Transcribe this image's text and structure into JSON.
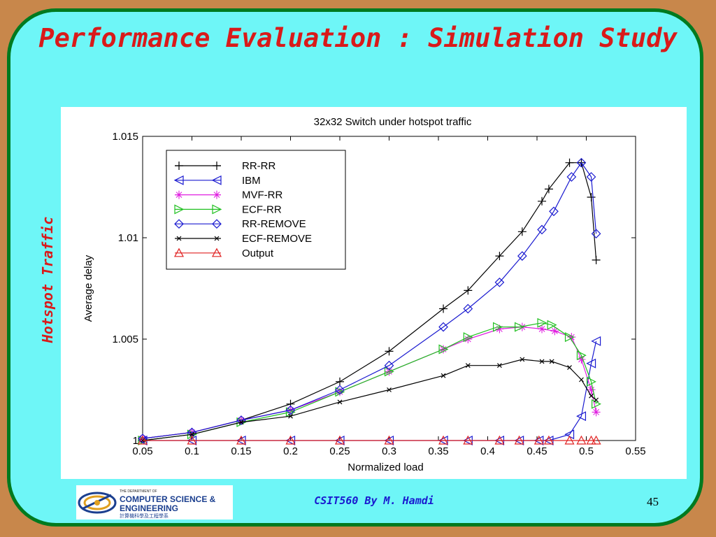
{
  "slide": {
    "title": "Performance Evaluation : Simulation Study",
    "side_label": "Hotspot Traffic",
    "footer": "CSIT560 By M. Hamdi",
    "page_number": "45",
    "logo": {
      "line1": "THE DEPARTMENT OF",
      "line2": "COMPUTER SCIENCE &",
      "line3": "ENGINEERING",
      "line4": "計算機科學及工程學系"
    }
  },
  "chart_data": {
    "type": "line",
    "title": "32x32 Switch under hotspot traffic",
    "xlabel": "Normalized load",
    "ylabel": "Average delay",
    "xlim": [
      0.05,
      0.55
    ],
    "ylim": [
      1,
      1.015
    ],
    "xticks": [
      "0.05",
      "0.1",
      "0.15",
      "0.2",
      "0.25",
      "0.3",
      "0.35",
      "0.4",
      "0.45",
      "0.5",
      "0.55"
    ],
    "yticks": [
      "1",
      "1.005",
      "1.01",
      "1.015"
    ],
    "grid": false,
    "legend_position": "top-left",
    "series": [
      {
        "name": "RR-RR",
        "color": "#000000",
        "marker": "plus",
        "x": [
          0.05,
          0.1,
          0.15,
          0.2,
          0.25,
          0.3,
          0.355,
          0.38,
          0.412,
          0.435,
          0.455,
          0.462,
          0.483,
          0.495,
          0.505,
          0.51
        ],
        "y": [
          1.0001,
          1.0004,
          1.001,
          1.0018,
          1.0029,
          1.0044,
          1.0065,
          1.0074,
          1.0091,
          1.0103,
          1.0118,
          1.0124,
          1.0137,
          1.0137,
          1.012,
          1.0089
        ]
      },
      {
        "name": "IBM",
        "color": "#1a1ad0",
        "marker": "triangle-left",
        "x": [
          0.05,
          0.1,
          0.15,
          0.2,
          0.25,
          0.3,
          0.355,
          0.38,
          0.412,
          0.432,
          0.452,
          0.462,
          0.483,
          0.495,
          0.505,
          0.51
        ],
        "y": [
          1.0,
          1.0,
          1.0,
          1.0,
          1.0,
          1.0,
          1.0,
          1.0,
          1.0,
          1.0,
          1.0,
          1.0,
          1.0003,
          1.0012,
          1.0038,
          1.0049
        ]
      },
      {
        "name": "MVF-RR",
        "color": "#e020e0",
        "marker": "star",
        "x": [
          0.05,
          0.1,
          0.15,
          0.2,
          0.25,
          0.3,
          0.355,
          0.38,
          0.412,
          0.435,
          0.455,
          0.468,
          0.485,
          0.495,
          0.505,
          0.51
        ],
        "y": [
          1.0001,
          1.0004,
          1.001,
          1.0015,
          1.0024,
          1.0034,
          1.0045,
          1.005,
          1.0055,
          1.0056,
          1.0055,
          1.0054,
          1.0051,
          1.004,
          1.0025,
          1.0014
        ]
      },
      {
        "name": "ECF-RR",
        "color": "#20c020",
        "marker": "triangle-right",
        "x": [
          0.05,
          0.1,
          0.15,
          0.2,
          0.25,
          0.3,
          0.355,
          0.38,
          0.41,
          0.432,
          0.455,
          0.465,
          0.483,
          0.495,
          0.505,
          0.51
        ],
        "y": [
          1.0,
          1.0003,
          1.0009,
          1.0014,
          1.0024,
          1.0034,
          1.0045,
          1.0051,
          1.0056,
          1.0056,
          1.0058,
          1.0057,
          1.0051,
          1.0042,
          1.0029,
          1.0018
        ]
      },
      {
        "name": "RR-REMOVE",
        "color": "#1a1ad0",
        "marker": "diamond",
        "x": [
          0.05,
          0.1,
          0.15,
          0.2,
          0.25,
          0.3,
          0.355,
          0.38,
          0.412,
          0.435,
          0.455,
          0.467,
          0.485,
          0.495,
          0.505,
          0.51
        ],
        "y": [
          1.0001,
          1.0004,
          1.001,
          1.0015,
          1.0025,
          1.0037,
          1.0056,
          1.0065,
          1.0078,
          1.0091,
          1.0104,
          1.0113,
          1.013,
          1.0137,
          1.013,
          1.0102
        ]
      },
      {
        "name": "ECF-REMOVE",
        "color": "#000000",
        "marker": "x",
        "x": [
          0.05,
          0.1,
          0.15,
          0.2,
          0.25,
          0.3,
          0.355,
          0.38,
          0.412,
          0.435,
          0.455,
          0.465,
          0.483,
          0.495,
          0.505,
          0.51
        ],
        "y": [
          1.0,
          1.0003,
          1.0009,
          1.0012,
          1.0019,
          1.0025,
          1.0032,
          1.0037,
          1.0037,
          1.004,
          1.0039,
          1.0039,
          1.0036,
          1.003,
          1.0022,
          1.002
        ]
      },
      {
        "name": "Output",
        "color": "#e02020",
        "marker": "triangle-up",
        "x": [
          0.05,
          0.1,
          0.15,
          0.2,
          0.25,
          0.3,
          0.355,
          0.38,
          0.412,
          0.432,
          0.452,
          0.462,
          0.483,
          0.495,
          0.505,
          0.51
        ],
        "y": [
          1.0,
          1.0,
          1.0,
          1.0,
          1.0,
          1.0,
          1.0,
          1.0,
          1.0,
          1.0,
          1.0,
          1.0,
          1.0,
          1.0,
          1.0,
          1.0
        ]
      }
    ]
  }
}
